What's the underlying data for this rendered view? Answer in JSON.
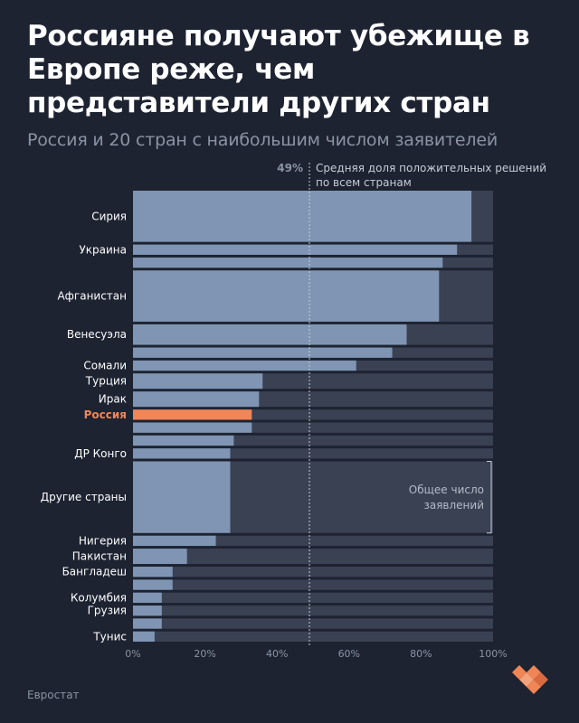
{
  "title": "Россияне получают убежище в Европе реже, чем представители других стран",
  "subtitle": "Россия и 20 стран с наибольшим числом заявителей",
  "source": "Евростат",
  "colors": {
    "background": "#1d2331",
    "total_bar": "#3a4152",
    "positive_bar": "#7f95b3",
    "highlight": "#f08556",
    "text": "#ffffff",
    "muted": "#8b93a3"
  },
  "chart_data": {
    "type": "bar",
    "orientation": "horizontal",
    "title": "",
    "xlabel": "",
    "ylabel": "",
    "xlim": [
      0,
      100
    ],
    "x_ticks": [
      "0%",
      "20%",
      "40%",
      "60%",
      "80%",
      "100%"
    ],
    "series": [
      {
        "values": [
          100,
          100,
          100,
          100,
          100,
          100,
          100,
          100,
          100,
          100,
          100,
          100,
          100,
          100,
          100,
          100,
          100,
          100,
          100,
          100,
          100,
          100
        ]
      },
      {
        "values": [
          94,
          90,
          86,
          85,
          76,
          72,
          62,
          36,
          35,
          33,
          33,
          28,
          27,
          27,
          23,
          15,
          11,
          11,
          8,
          8,
          8,
          6
        ]
      }
    ],
    "categories": [
      "Сирия",
      "Украина",
      "",
      "Афганистан",
      "Венесуэла",
      "",
      "Сомали",
      "Турция",
      "Ирак",
      "Россия",
      "",
      "",
      "ДР Конго",
      "Другие страны",
      "Нигерия",
      "Пакистан",
      "Бангладеш",
      "",
      "Колумбия",
      "Грузия",
      "",
      "Тунис"
    ],
    "applications_weight": [
      5,
      1,
      1,
      5,
      2,
      1,
      1,
      1.5,
      1.5,
      1,
      1,
      1,
      1,
      7,
      1,
      1.5,
      1,
      1,
      1,
      1,
      1,
      1
    ],
    "highlight_category": "Россия",
    "reference_line": {
      "value": 49,
      "value_label": "49%",
      "label": "Средняя доля положительных решений по всем странам"
    },
    "bracket_annotation": "Общее число заявлений"
  }
}
